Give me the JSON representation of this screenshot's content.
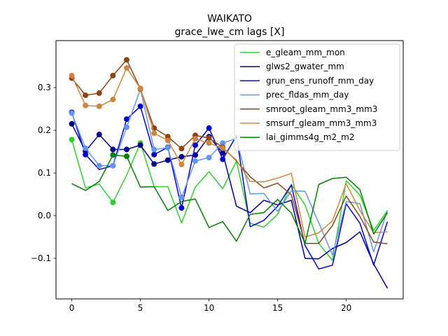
{
  "chart_data": {
    "type": "line",
    "title": "WAIKATO",
    "subtitle": "grace_lwe_cm lags [X]",
    "x": [
      0,
      1,
      2,
      3,
      4,
      5,
      6,
      7,
      8,
      9,
      10,
      11,
      12,
      13,
      14,
      15,
      16,
      17,
      18,
      19,
      20,
      21,
      22,
      23
    ],
    "xlim": [
      -1.15,
      24.15
    ],
    "ylim": [
      -0.195,
      0.41
    ],
    "x_ticks": [
      0,
      5,
      10,
      15,
      20
    ],
    "y_ticks": [
      -0.1,
      0.0,
      0.1,
      0.2,
      0.3
    ],
    "y_tick_labels": [
      "−0.1",
      "0.0",
      "0.1",
      "0.2",
      "0.3"
    ],
    "legend_position": "upper right",
    "series": [
      {
        "name": "e_gleam_mm_mon",
        "color": "#32cd32",
        "values": [
          0.178,
          0.065,
          0.074,
          0.031,
          0.095,
          0.17,
          0.068,
          0.068,
          -0.017,
          0.067,
          0.103,
          0.063,
          0.128,
          -0.018,
          -0.027,
          0.003,
          0.073,
          0.025,
          -0.065,
          -0.105,
          0.082,
          0.048,
          -0.035,
          0.012
        ],
        "markers": [
          0,
          3,
          5
        ]
      },
      {
        "name": "glws2_gwater_mm",
        "color": "#00008b",
        "values": [
          0.215,
          0.151,
          0.19,
          0.155,
          0.155,
          0.165,
          0.121,
          0.13,
          0.138,
          0.142,
          0.185,
          0.147,
          0.022,
          0.007,
          0.036,
          0.025,
          0.036,
          -0.1,
          -0.101,
          -0.077,
          -0.063,
          -0.038,
          -0.113,
          -0.17
        ],
        "markers": [
          0,
          1,
          2,
          3,
          4,
          5,
          6,
          7,
          8,
          9,
          10,
          11
        ]
      },
      {
        "name": "grun_ens_runoff_mm_day",
        "color": "#0000cd",
        "values": [
          0.242,
          0.143,
          0.108,
          0.117,
          0.226,
          0.256,
          0.143,
          0.16,
          0.018,
          0.165,
          0.205,
          0.132,
          0.187,
          -0.026,
          -0.011,
          0.022,
          0.072,
          -0.07,
          -0.125,
          -0.116,
          0.028,
          -0.018,
          -0.116,
          -0.014
        ],
        "markers": [
          0,
          1,
          3,
          4,
          5,
          6,
          7,
          8,
          9,
          10,
          11
        ]
      },
      {
        "name": "prec_fldas_mm_day",
        "color": "#6495ed",
        "values": [
          0.24,
          0.158,
          0.117,
          0.117,
          0.207,
          0.296,
          0.155,
          0.159,
          0.043,
          0.128,
          0.136,
          0.17,
          0.181,
          0.051,
          0.052,
          0.01,
          0.058,
          0.057,
          -0.017,
          -0.092,
          0.033,
          0.028,
          -0.085,
          0.012
        ],
        "markers": [
          0,
          1,
          2,
          3,
          4,
          5,
          6,
          7,
          8,
          9,
          10,
          11
        ]
      },
      {
        "name": "smroot_gleam_mm3_mm3",
        "color": "#8b4513",
        "values": [
          0.322,
          0.282,
          0.287,
          0.328,
          0.365,
          0.297,
          0.205,
          0.185,
          0.157,
          0.188,
          0.182,
          0.16,
          0.128,
          0.091,
          0.065,
          0.076,
          0.049,
          -0.065,
          -0.065,
          -0.023,
          0.046,
          -0.002,
          -0.062,
          -0.066
        ],
        "markers": [
          0,
          1,
          2,
          3,
          4,
          5,
          6,
          7,
          8,
          9,
          10,
          11
        ]
      },
      {
        "name": "smsurf_gleam_mm3_mm3",
        "color": "#cd853f",
        "values": [
          0.328,
          0.258,
          0.256,
          0.272,
          0.346,
          0.298,
          0.193,
          0.176,
          0.12,
          0.18,
          0.17,
          0.158,
          0.13,
          0.08,
          0.079,
          0.088,
          0.099,
          -0.05,
          -0.04,
          -0.012,
          0.075,
          0.012,
          -0.04,
          -0.038
        ],
        "markers": [
          0,
          1,
          2,
          3,
          4,
          5,
          6,
          7,
          8,
          9,
          10,
          11
        ]
      },
      {
        "name": "lai_gimms4g_m2_m2",
        "color": "#008000",
        "values": [
          0.075,
          0.059,
          0.08,
          0.142,
          0.139,
          0.067,
          0.068,
          0.012,
          0.033,
          0.039,
          -0.028,
          -0.014,
          -0.06,
          0.003,
          0.007,
          0.038,
          0.006,
          -0.065,
          0.073,
          0.087,
          0.09,
          0.061,
          -0.043,
          0.007
        ],
        "markers": [
          3,
          4
        ]
      }
    ]
  }
}
